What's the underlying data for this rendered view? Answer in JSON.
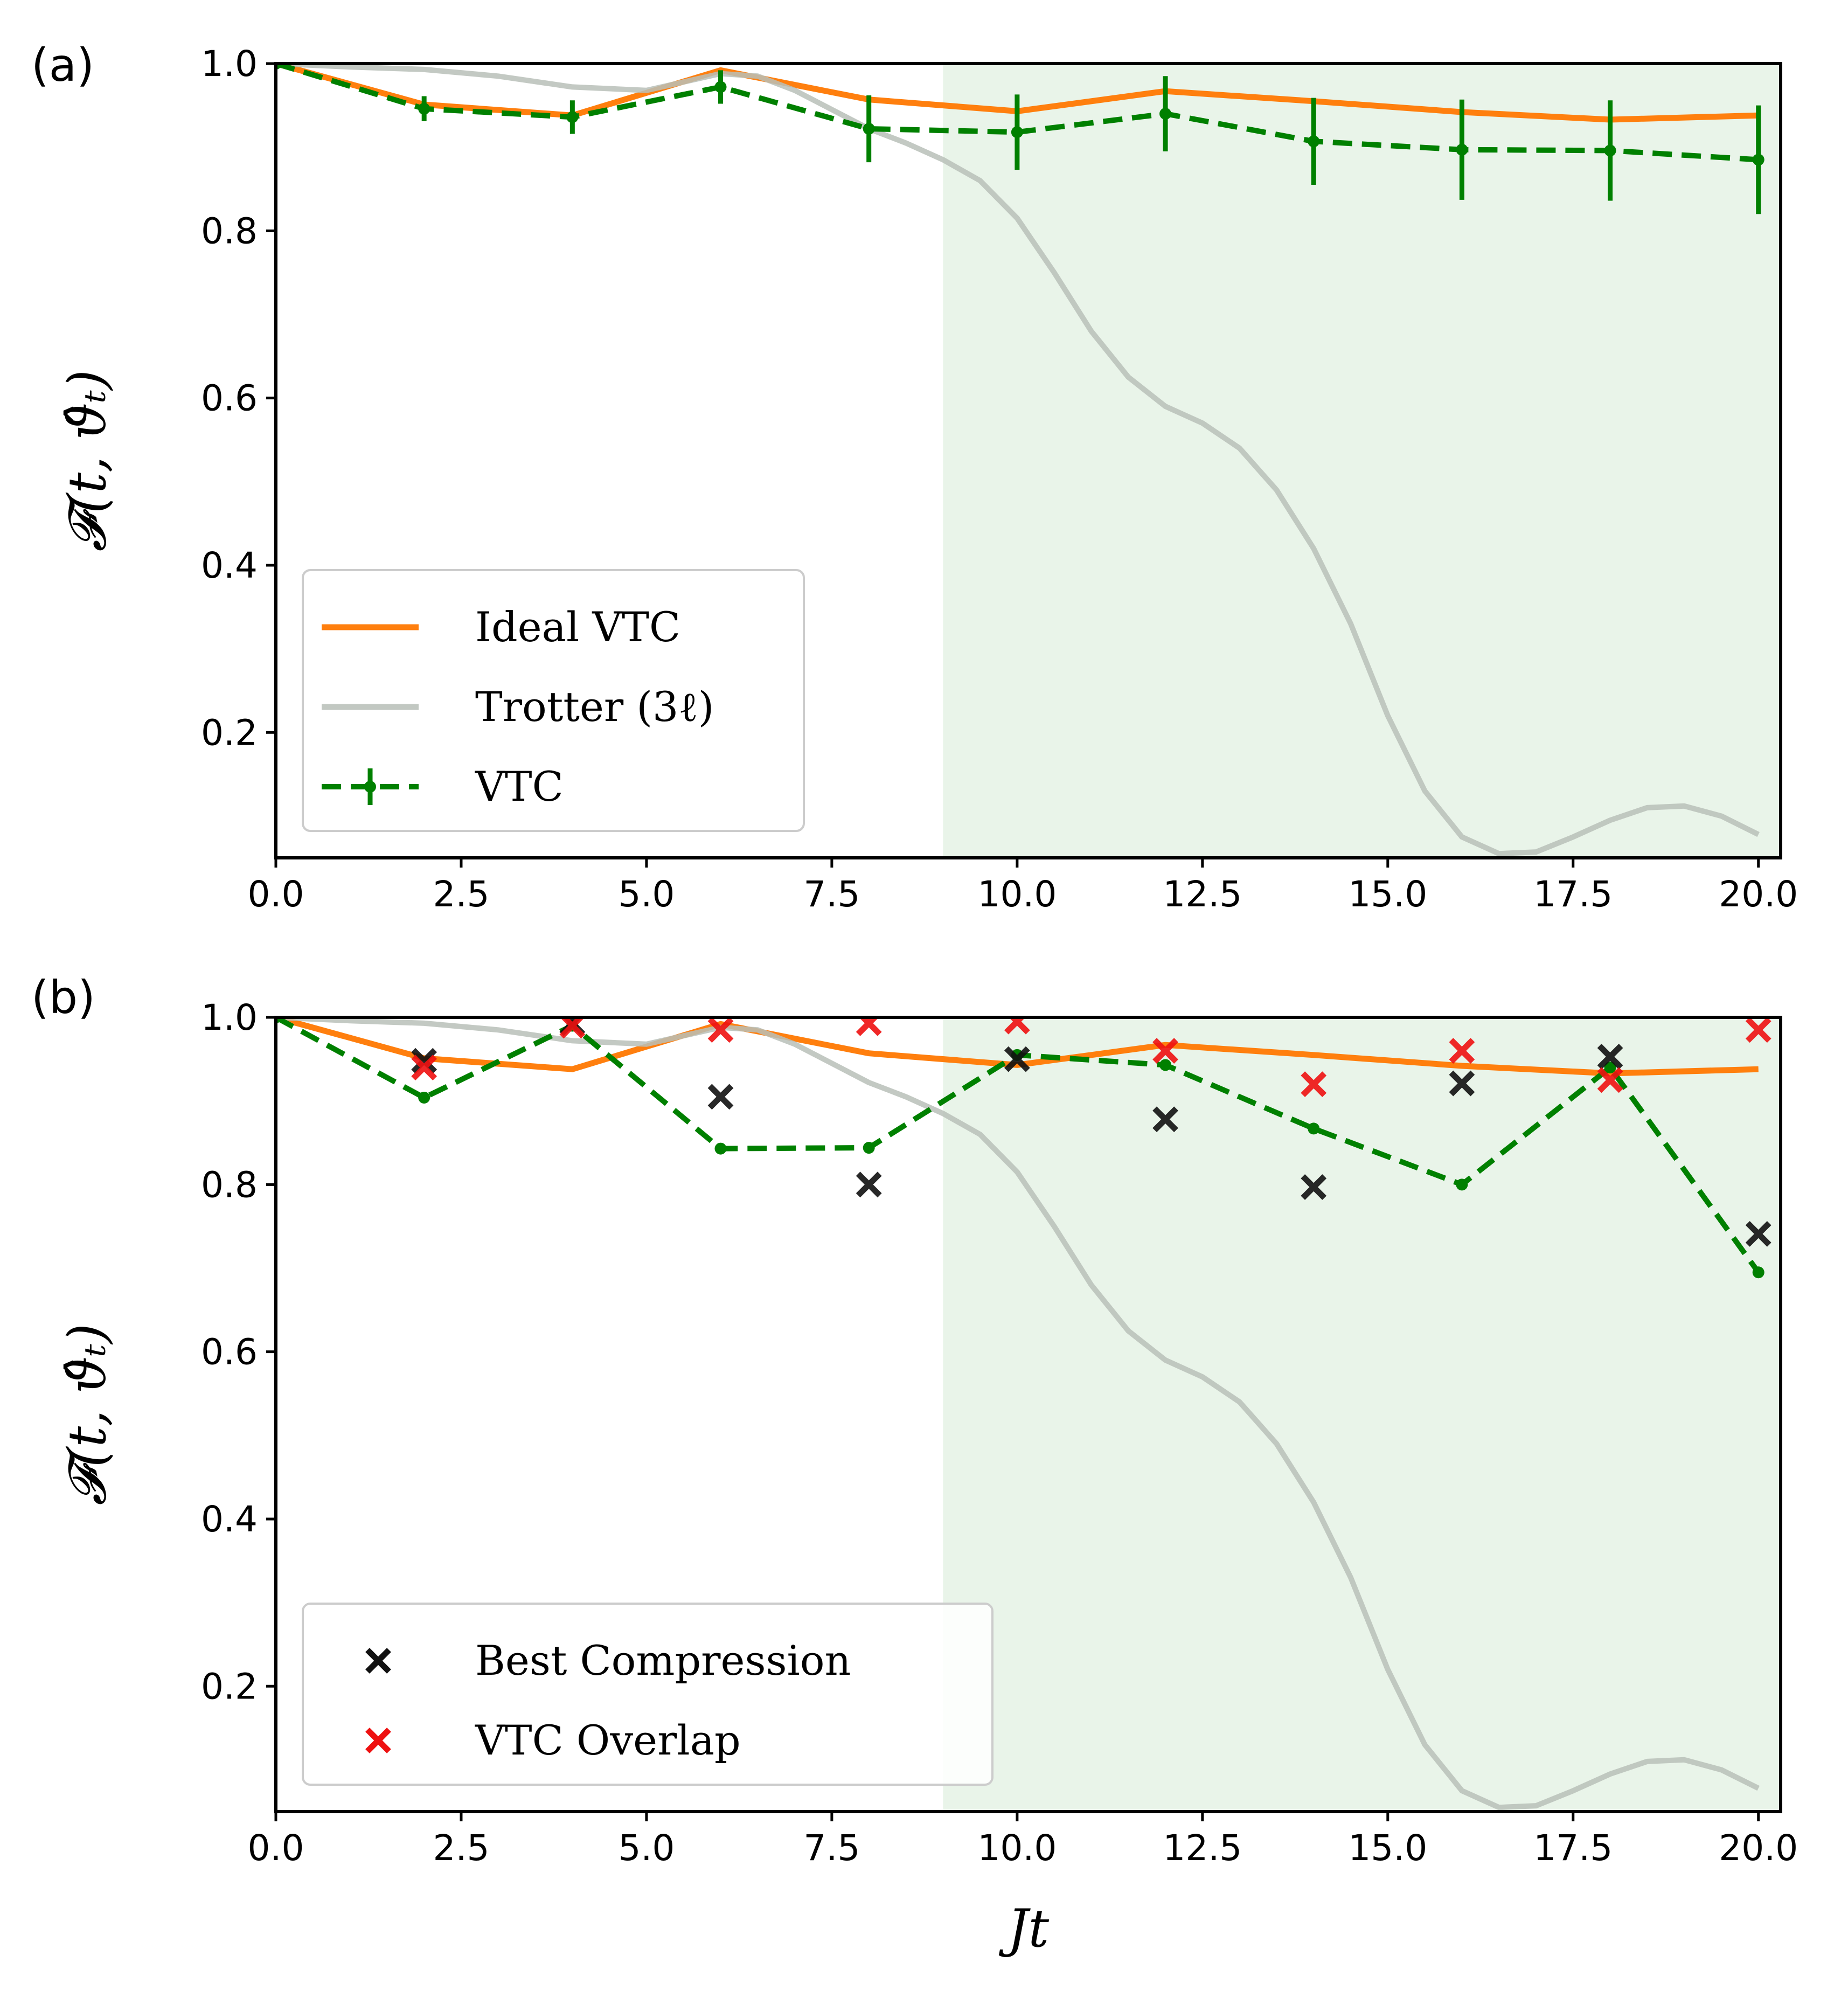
{
  "chart_data": [
    {
      "type": "line",
      "panel_label": "(a)",
      "ylabel": "𝓕(t, ϑ̂ₜ)",
      "xlabel": "",
      "xlim": [
        0,
        20.3
      ],
      "ylim": [
        0.05,
        1.0
      ],
      "xticks": [
        "0.0",
        "2.5",
        "5.0",
        "7.5",
        "10.0",
        "12.5",
        "15.0",
        "17.5",
        "20.0"
      ],
      "yticks": [
        "0.2",
        "0.4",
        "0.6",
        "0.8",
        "1.0"
      ],
      "shaded_region": {
        "x_start": 9.0,
        "x_end": 20.3,
        "color": "#e9f4e9"
      },
      "series": [
        {
          "name": "Ideal VTC",
          "color": "#ff7f0e",
          "style": "solid",
          "x": [
            0,
            2,
            4,
            6,
            8,
            10,
            12,
            14,
            16,
            18,
            20
          ],
          "y": [
            1.0,
            0.951,
            0.938,
            0.992,
            0.957,
            0.943,
            0.967,
            0.955,
            0.942,
            0.933,
            0.938
          ]
        },
        {
          "name": "Trotter (3ℓ)",
          "color": "#b8bfb8",
          "style": "solid",
          "x": [
            0,
            1,
            2,
            3,
            4,
            5,
            6,
            6.5,
            7,
            7.5,
            8,
            8.5,
            9,
            9.5,
            10,
            10.5,
            11,
            11.5,
            12,
            12.5,
            13,
            13.5,
            14,
            14.5,
            15,
            15.5,
            16,
            16.5,
            17,
            17.5,
            18,
            18.5,
            19,
            19.5,
            20
          ],
          "y": [
            1.0,
            0.996,
            0.993,
            0.985,
            0.972,
            0.968,
            0.988,
            0.985,
            0.968,
            0.945,
            0.922,
            0.905,
            0.885,
            0.86,
            0.815,
            0.75,
            0.68,
            0.625,
            0.59,
            0.57,
            0.54,
            0.49,
            0.42,
            0.33,
            0.22,
            0.13,
            0.075,
            0.055,
            0.057,
            0.075,
            0.095,
            0.11,
            0.112,
            0.1,
            0.078
          ]
        },
        {
          "name": "VTC",
          "color": "#008000",
          "style": "dashed",
          "x": [
            0,
            2,
            4,
            6,
            8,
            10,
            12,
            14,
            16,
            18,
            20
          ],
          "y": [
            1.0,
            0.946,
            0.936,
            0.972,
            0.922,
            0.918,
            0.94,
            0.907,
            0.897,
            0.896,
            0.885
          ],
          "yerr": [
            0.0,
            0.015,
            0.02,
            0.02,
            0.04,
            0.045,
            0.045,
            0.052,
            0.06,
            0.06,
            0.065
          ]
        }
      ],
      "legend": {
        "position": "lower-left",
        "entries": [
          "Ideal VTC",
          "Trotter (3ℓ)",
          "VTC"
        ]
      }
    },
    {
      "type": "line",
      "panel_label": "(b)",
      "ylabel": "𝓕(t, ϑ̂ₜ)",
      "xlabel": "Jt",
      "xlim": [
        0,
        20.3
      ],
      "ylim": [
        0.05,
        1.0
      ],
      "xticks": [
        "0.0",
        "2.5",
        "5.0",
        "7.5",
        "10.0",
        "12.5",
        "15.0",
        "17.5",
        "20.0"
      ],
      "yticks": [
        "0.2",
        "0.4",
        "0.6",
        "0.8",
        "1.0"
      ],
      "shaded_region": {
        "x_start": 9.0,
        "x_end": 20.3,
        "color": "#e9f4e9"
      },
      "series": [
        {
          "name": "Ideal VTC",
          "color": "#ff7f0e",
          "style": "solid",
          "x": [
            0,
            2,
            4,
            6,
            8,
            10,
            12,
            14,
            16,
            18,
            20
          ],
          "y": [
            1.0,
            0.951,
            0.938,
            0.992,
            0.957,
            0.943,
            0.967,
            0.955,
            0.942,
            0.933,
            0.938
          ]
        },
        {
          "name": "Trotter (3ℓ)",
          "color": "#b8bfb8",
          "style": "solid",
          "x": [
            0,
            1,
            2,
            3,
            4,
            5,
            6,
            6.5,
            7,
            7.5,
            8,
            8.5,
            9,
            9.5,
            10,
            10.5,
            11,
            11.5,
            12,
            12.5,
            13,
            13.5,
            14,
            14.5,
            15,
            15.5,
            16,
            16.5,
            17,
            17.5,
            18,
            18.5,
            19,
            19.5,
            20
          ],
          "y": [
            1.0,
            0.996,
            0.993,
            0.985,
            0.972,
            0.968,
            0.988,
            0.985,
            0.968,
            0.945,
            0.922,
            0.905,
            0.885,
            0.86,
            0.815,
            0.75,
            0.68,
            0.625,
            0.59,
            0.57,
            0.54,
            0.49,
            0.42,
            0.33,
            0.22,
            0.13,
            0.075,
            0.055,
            0.057,
            0.075,
            0.095,
            0.11,
            0.112,
            0.1,
            0.078
          ]
        },
        {
          "name": "VTC",
          "color": "#008000",
          "style": "dashed",
          "x": [
            0,
            2,
            4,
            6,
            8,
            10,
            12,
            14,
            16,
            18,
            20
          ],
          "y": [
            1.0,
            0.904,
            0.99,
            0.843,
            0.844,
            0.955,
            0.943,
            0.867,
            0.8,
            0.94,
            0.695
          ]
        },
        {
          "name": "Best Compression",
          "color": "#111111",
          "style": "marker-x",
          "x": [
            2,
            4,
            6,
            8,
            10,
            12,
            14,
            16,
            18,
            20
          ],
          "y": [
            0.948,
            0.993,
            0.905,
            0.8,
            0.95,
            0.878,
            0.797,
            0.921,
            0.953,
            0.741
          ]
        },
        {
          "name": "VTC Overlap",
          "color": "#ee1111",
          "style": "marker-x",
          "x": [
            2,
            4,
            6,
            8,
            10,
            12,
            14,
            16,
            18,
            20
          ],
          "y": [
            0.94,
            0.99,
            0.985,
            0.993,
            0.995,
            0.96,
            0.92,
            0.96,
            0.925,
            0.985
          ]
        }
      ],
      "legend": {
        "position": "lower-left",
        "entries": [
          "Best Compression",
          "VTC Overlap"
        ]
      }
    }
  ]
}
